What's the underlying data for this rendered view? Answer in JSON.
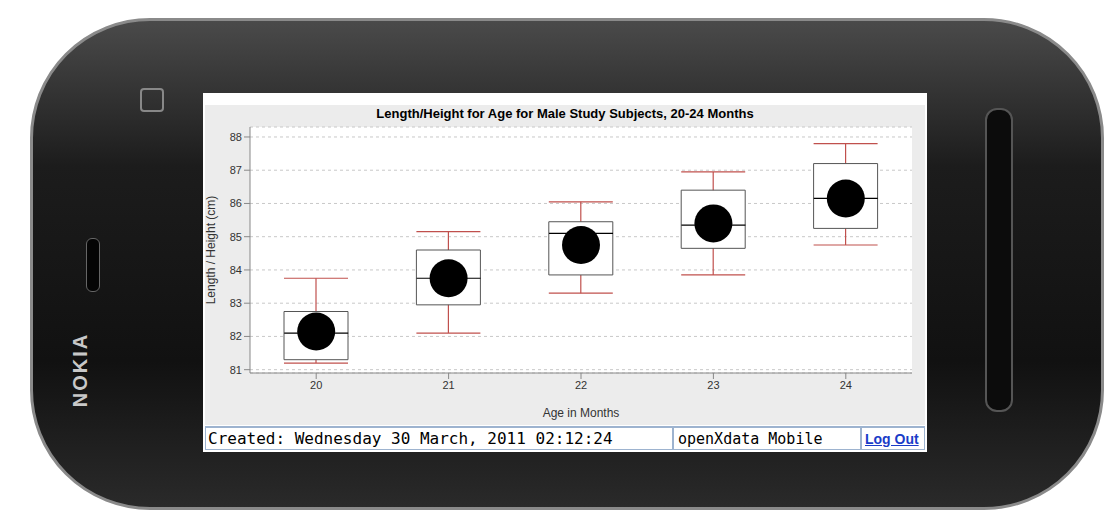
{
  "chart_data": {
    "type": "box",
    "title": "Length/Height for Age for Male Study Subjects, 20-24 Months",
    "x_label": "Age in Months",
    "y_label": "Length / Height (cm)",
    "categories": [
      20,
      21,
      22,
      23,
      24
    ],
    "min": [
      81.2,
      82.1,
      83.3,
      83.85,
      84.75
    ],
    "q1": [
      81.3,
      82.95,
      83.85,
      84.65,
      85.25
    ],
    "median": [
      82.1,
      83.75,
      85.1,
      85.35,
      86.15
    ],
    "q3": [
      82.75,
      84.6,
      85.45,
      86.4,
      87.2
    ],
    "max": [
      83.75,
      85.15,
      86.05,
      86.95,
      87.8
    ],
    "mean": [
      82.15,
      83.75,
      84.75,
      85.4,
      86.15
    ],
    "ylim": [
      80.9,
      88.3
    ],
    "yticks": [
      81,
      82,
      83,
      84,
      85,
      86,
      87,
      88
    ],
    "grid": true
  },
  "footer": {
    "created": "Created: Wednesday 30 March, 2011 02:12:24",
    "app": "openXdata Mobile",
    "link": "Log Out"
  },
  "device": {
    "brand": "NOKIA"
  }
}
